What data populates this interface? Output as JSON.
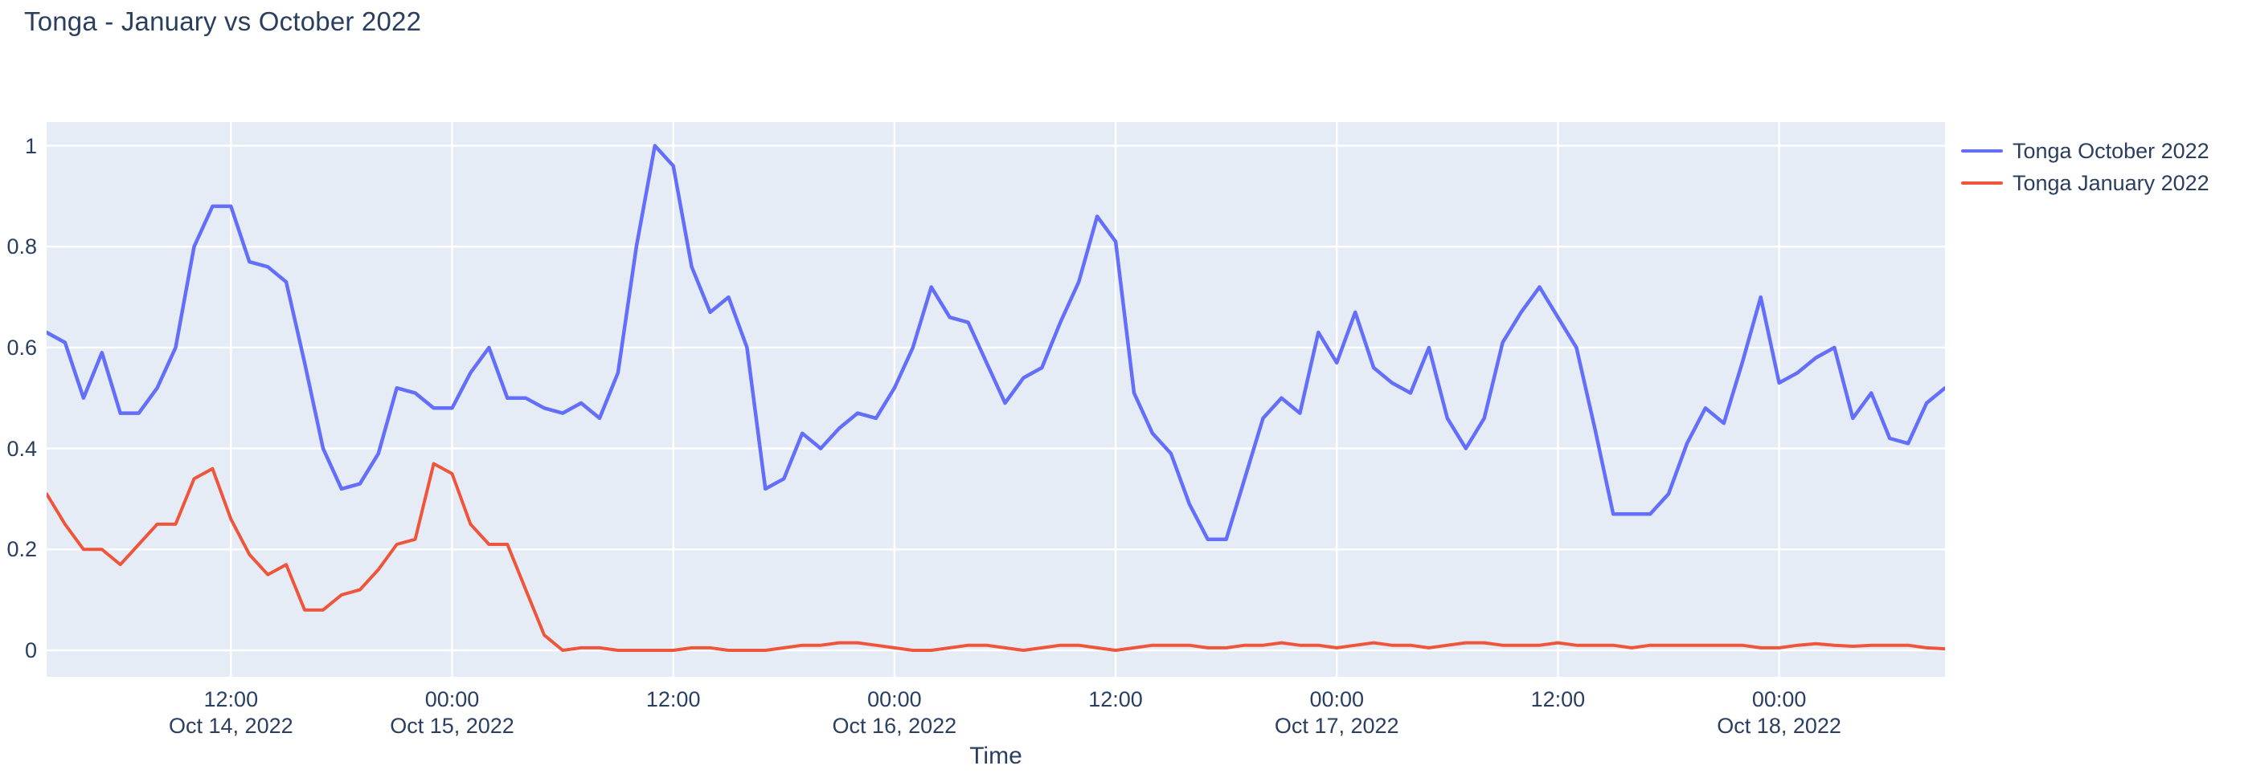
{
  "title": "Tonga - January vs October 2022",
  "x_axis_title": "Time",
  "colors": {
    "series_october": "#636EFA",
    "series_january": "#EF553B",
    "plot_background": "#E5ECF6",
    "gridline": "#FFFFFF",
    "text": "#2a3f5f"
  },
  "legend": {
    "items": [
      {
        "label": "Tonga October 2022",
        "color": "#636EFA"
      },
      {
        "label": "Tonga January 2022",
        "color": "#EF553B"
      }
    ]
  },
  "chart_data": {
    "type": "line",
    "title": "Tonga - January vs October 2022",
    "xlabel": "Time",
    "ylabel": "",
    "x_start": "2022-10-14 02:00",
    "x_step_hours": 1,
    "x_total_hours": 103,
    "ylim": [
      -0.05,
      1.05
    ],
    "grid": true,
    "legend_position": "right-top-outside",
    "yticks": [
      {
        "v": 0.0,
        "label": "0"
      },
      {
        "v": 0.2,
        "label": "0.2"
      },
      {
        "v": 0.4,
        "label": "0.4"
      },
      {
        "v": 0.6,
        "label": "0.6"
      },
      {
        "v": 0.8,
        "label": "0.8"
      },
      {
        "v": 1.0,
        "label": "1"
      }
    ],
    "xticks": [
      {
        "hour": 10,
        "time": "12:00",
        "date": "Oct 14, 2022"
      },
      {
        "hour": 22,
        "time": "00:00",
        "date": "Oct 15, 2022"
      },
      {
        "hour": 34,
        "time": "12:00",
        "date": ""
      },
      {
        "hour": 46,
        "time": "00:00",
        "date": "Oct 16, 2022"
      },
      {
        "hour": 58,
        "time": "12:00",
        "date": ""
      },
      {
        "hour": 70,
        "time": "00:00",
        "date": "Oct 17, 2022"
      },
      {
        "hour": 82,
        "time": "12:00",
        "date": ""
      },
      {
        "hour": 94,
        "time": "00:00",
        "date": "Oct 18, 2022"
      }
    ],
    "series": [
      {
        "name": "Tonga October 2022",
        "color": "#636EFA",
        "width": 4.5,
        "values": [
          0.63,
          0.61,
          0.5,
          0.59,
          0.47,
          0.47,
          0.52,
          0.6,
          0.8,
          0.88,
          0.88,
          0.77,
          0.76,
          0.73,
          0.57,
          0.4,
          0.32,
          0.33,
          0.39,
          0.52,
          0.51,
          0.48,
          0.48,
          0.55,
          0.6,
          0.5,
          0.5,
          0.48,
          0.47,
          0.49,
          0.46,
          0.55,
          0.8,
          1.0,
          0.96,
          0.76,
          0.67,
          0.7,
          0.6,
          0.32,
          0.34,
          0.43,
          0.4,
          0.44,
          0.47,
          0.46,
          0.52,
          0.6,
          0.72,
          0.66,
          0.65,
          0.57,
          0.49,
          0.54,
          0.56,
          0.65,
          0.73,
          0.86,
          0.81,
          0.51,
          0.43,
          0.39,
          0.29,
          0.22,
          0.22,
          0.34,
          0.46,
          0.5,
          0.47,
          0.63,
          0.57,
          0.67,
          0.56,
          0.53,
          0.51,
          0.6,
          0.46,
          0.4,
          0.46,
          0.61,
          0.67,
          0.72,
          0.66,
          0.6,
          0.44,
          0.27,
          0.27,
          0.27,
          0.31,
          0.41,
          0.48,
          0.45,
          0.57,
          0.7,
          0.53,
          0.55,
          0.58,
          0.6,
          0.46,
          0.51,
          0.42,
          0.41,
          0.49,
          0.52
        ]
      },
      {
        "name": "Tonga January 2022",
        "color": "#EF553B",
        "width": 4,
        "values": [
          0.31,
          0.25,
          0.2,
          0.2,
          0.17,
          0.21,
          0.25,
          0.25,
          0.34,
          0.36,
          0.26,
          0.19,
          0.15,
          0.17,
          0.08,
          0.08,
          0.11,
          0.12,
          0.16,
          0.21,
          0.22,
          0.37,
          0.35,
          0.25,
          0.21,
          0.21,
          0.12,
          0.03,
          0.0,
          0.005,
          0.005,
          0.0,
          0.0,
          0.0,
          0.0,
          0.005,
          0.005,
          0.0,
          0.0,
          0.0,
          0.005,
          0.01,
          0.01,
          0.015,
          0.015,
          0.01,
          0.005,
          0.0,
          0.0,
          0.005,
          0.01,
          0.01,
          0.005,
          0.0,
          0.005,
          0.01,
          0.01,
          0.005,
          0.0,
          0.005,
          0.01,
          0.01,
          0.01,
          0.005,
          0.005,
          0.01,
          0.01,
          0.015,
          0.01,
          0.01,
          0.005,
          0.01,
          0.015,
          0.01,
          0.01,
          0.005,
          0.01,
          0.015,
          0.015,
          0.01,
          0.01,
          0.01,
          0.015,
          0.01,
          0.01,
          0.01,
          0.005,
          0.01,
          0.01,
          0.01,
          0.01,
          0.01,
          0.01,
          0.005,
          0.005,
          0.01,
          0.013,
          0.01,
          0.008,
          0.01,
          0.01,
          0.01,
          0.005,
          0.003
        ]
      }
    ]
  }
}
